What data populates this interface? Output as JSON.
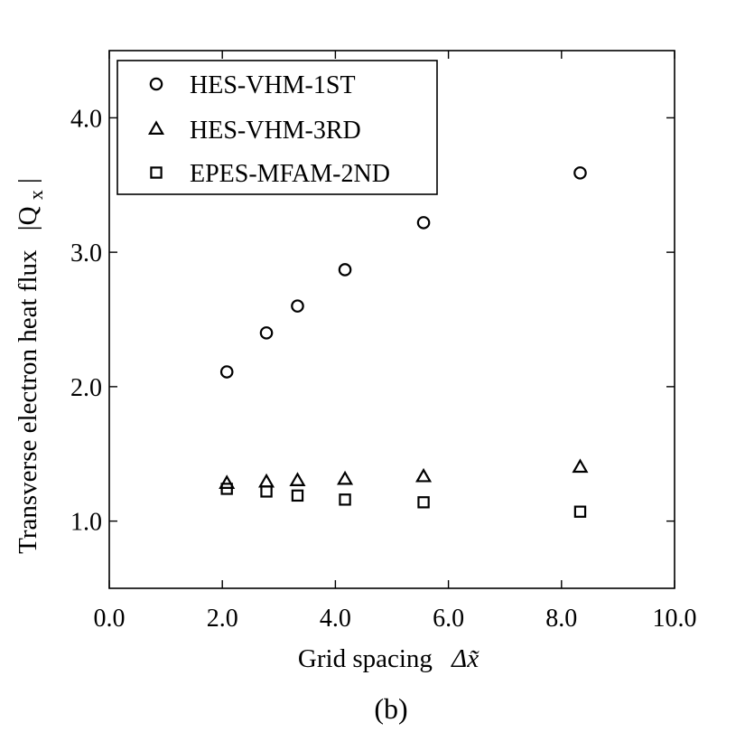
{
  "chart_data": {
    "type": "scatter",
    "xlabel_text": "Grid spacing",
    "xlabel_symbol": "Δx̃",
    "ylabel_text": "Transverse electron heat flux",
    "ylabel_symbol_main": "|Q",
    "ylabel_symbol_sub": "x",
    "ylabel_symbol_end": "|",
    "panel_label": "(b)",
    "xlim": [
      0.0,
      10.0
    ],
    "ylim": [
      0.5,
      4.5
    ],
    "x_ticks": [
      {
        "value": 0.0,
        "label": "0.0"
      },
      {
        "value": 2.0,
        "label": "2.0"
      },
      {
        "value": 4.0,
        "label": "4.0"
      },
      {
        "value": 6.0,
        "label": "6.0"
      },
      {
        "value": 8.0,
        "label": "8.0"
      },
      {
        "value": 10.0,
        "label": "10.0"
      }
    ],
    "y_ticks": [
      {
        "value": 1.0,
        "label": "1.0"
      },
      {
        "value": 2.0,
        "label": "2.0"
      },
      {
        "value": 3.0,
        "label": "3.0"
      },
      {
        "value": 4.0,
        "label": "4.0"
      }
    ],
    "grid": false,
    "legend_position": "top-left",
    "series": [
      {
        "name": "HES-VHM-1ST",
        "marker": "circle",
        "x": [
          2.08,
          2.78,
          3.33,
          4.17,
          5.56,
          8.33
        ],
        "y": [
          2.11,
          2.4,
          2.6,
          2.87,
          3.22,
          3.59
        ]
      },
      {
        "name": "HES-VHM-3RD",
        "marker": "triangle",
        "x": [
          2.08,
          2.78,
          3.33,
          4.17,
          5.56,
          8.33
        ],
        "y": [
          1.28,
          1.29,
          1.3,
          1.31,
          1.33,
          1.4
        ]
      },
      {
        "name": "EPES-MFAM-2ND",
        "marker": "square",
        "x": [
          2.08,
          2.78,
          3.33,
          4.17,
          5.56,
          8.33
        ],
        "y": [
          1.24,
          1.22,
          1.19,
          1.16,
          1.14,
          1.07
        ]
      }
    ]
  }
}
